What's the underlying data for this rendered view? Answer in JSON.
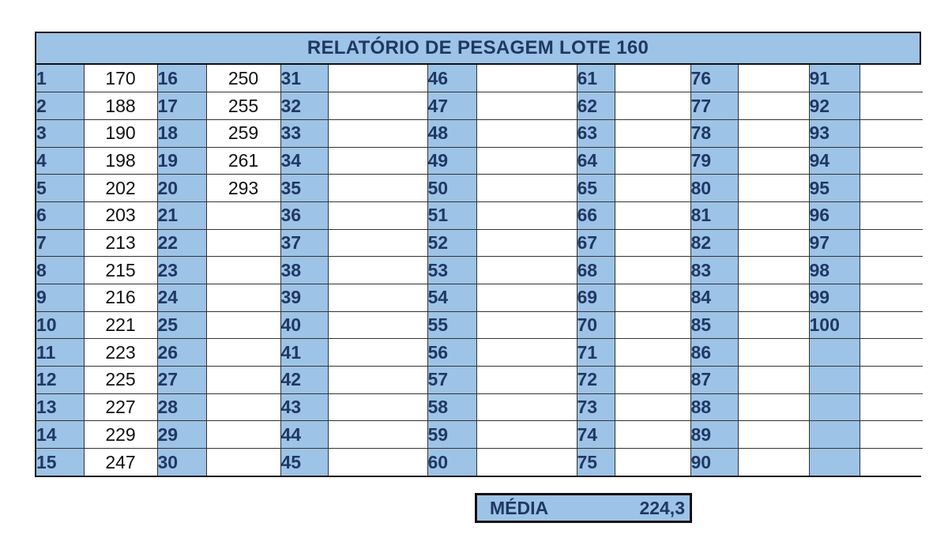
{
  "title": "RELATÓRIO DE PESAGEM LOTE 160",
  "summary": {
    "label": "MÉDIA",
    "value": "224,3"
  },
  "rows": [
    [
      "1",
      "170",
      "16",
      "250",
      "31",
      "",
      "46",
      "",
      "61",
      "",
      "76",
      "",
      "91",
      ""
    ],
    [
      "2",
      "188",
      "17",
      "255",
      "32",
      "",
      "47",
      "",
      "62",
      "",
      "77",
      "",
      "92",
      ""
    ],
    [
      "3",
      "190",
      "18",
      "259",
      "33",
      "",
      "48",
      "",
      "63",
      "",
      "78",
      "",
      "93",
      ""
    ],
    [
      "4",
      "198",
      "19",
      "261",
      "34",
      "",
      "49",
      "",
      "64",
      "",
      "79",
      "",
      "94",
      ""
    ],
    [
      "5",
      "202",
      "20",
      "293",
      "35",
      "",
      "50",
      "",
      "65",
      "",
      "80",
      "",
      "95",
      ""
    ],
    [
      "6",
      "203",
      "21",
      "",
      "36",
      "",
      "51",
      "",
      "66",
      "",
      "81",
      "",
      "96",
      ""
    ],
    [
      "7",
      "213",
      "22",
      "",
      "37",
      "",
      "52",
      "",
      "67",
      "",
      "82",
      "",
      "97",
      ""
    ],
    [
      "8",
      "215",
      "23",
      "",
      "38",
      "",
      "53",
      "",
      "68",
      "",
      "83",
      "",
      "98",
      ""
    ],
    [
      "9",
      "216",
      "24",
      "",
      "39",
      "",
      "54",
      "",
      "69",
      "",
      "84",
      "",
      "99",
      ""
    ],
    [
      "10",
      "221",
      "25",
      "",
      "40",
      "",
      "55",
      "",
      "70",
      "",
      "85",
      "",
      "100",
      ""
    ],
    [
      "11",
      "223",
      "26",
      "",
      "41",
      "",
      "56",
      "",
      "71",
      "",
      "86",
      "",
      "",
      ""
    ],
    [
      "12",
      "225",
      "27",
      "",
      "42",
      "",
      "57",
      "",
      "72",
      "",
      "87",
      "",
      "",
      ""
    ],
    [
      "13",
      "227",
      "28",
      "",
      "43",
      "",
      "58",
      "",
      "73",
      "",
      "88",
      "",
      "",
      ""
    ],
    [
      "14",
      "229",
      "29",
      "",
      "44",
      "",
      "59",
      "",
      "74",
      "",
      "89",
      "",
      "",
      ""
    ],
    [
      "15",
      "247",
      "30",
      "",
      "45",
      "",
      "60",
      "",
      "75",
      "",
      "90",
      "",
      "",
      ""
    ]
  ]
}
